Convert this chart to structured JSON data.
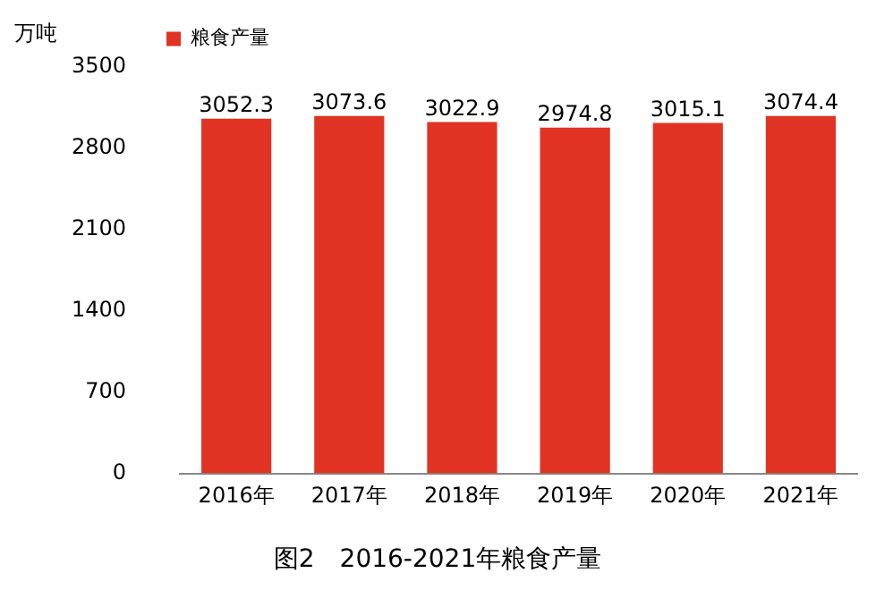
{
  "chart_data": {
    "type": "bar",
    "title": "图2　2016-2021年粮食产量",
    "ylabel": "万吨",
    "categories": [
      "2016年",
      "2017年",
      "2018年",
      "2019年",
      "2020年",
      "2021年"
    ],
    "series": [
      {
        "name": "粮食产量",
        "color": "#e03323",
        "values": [
          3052.3,
          3073.6,
          3022.9,
          2974.8,
          3015.1,
          3074.4
        ]
      }
    ],
    "ylim": [
      0,
      3500
    ],
    "yticks": [
      0,
      700,
      1400,
      2100,
      2800,
      3500
    ],
    "grid": false,
    "legend": "top left",
    "data_labels": true
  }
}
